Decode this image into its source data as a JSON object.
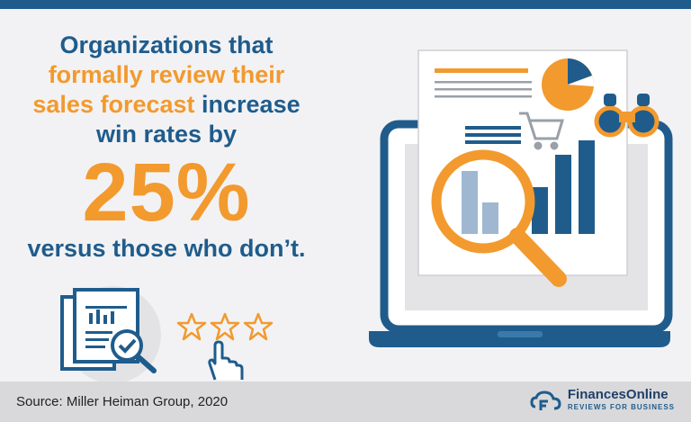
{
  "headline": {
    "line1": "Organizations that",
    "line2_accent": "formally review their",
    "line3_accent": "sales forecast",
    "line3_rest": " increase",
    "line4": "win rates by"
  },
  "stat": {
    "value": "25%"
  },
  "subline": "versus those who don’t.",
  "footer": {
    "source": "Source: Miller Heiman Group, 2020",
    "brand_name": "FinancesOnline",
    "brand_tagline": "REVIEWS FOR BUSINESS"
  },
  "rating": {
    "stars_outlined": 3
  },
  "colors": {
    "navy": "#1f5c8c",
    "orange": "#f29a2e",
    "lightblue": "#9fb7d0"
  },
  "icons": [
    "laptop-icon",
    "pie-chart-icon",
    "binoculars-icon",
    "shopping-cart-icon",
    "magnifier-icon",
    "bar-chart-icon",
    "document-check-icon",
    "star-icon",
    "pointer-hand-icon",
    "brand-logo-icon"
  ]
}
